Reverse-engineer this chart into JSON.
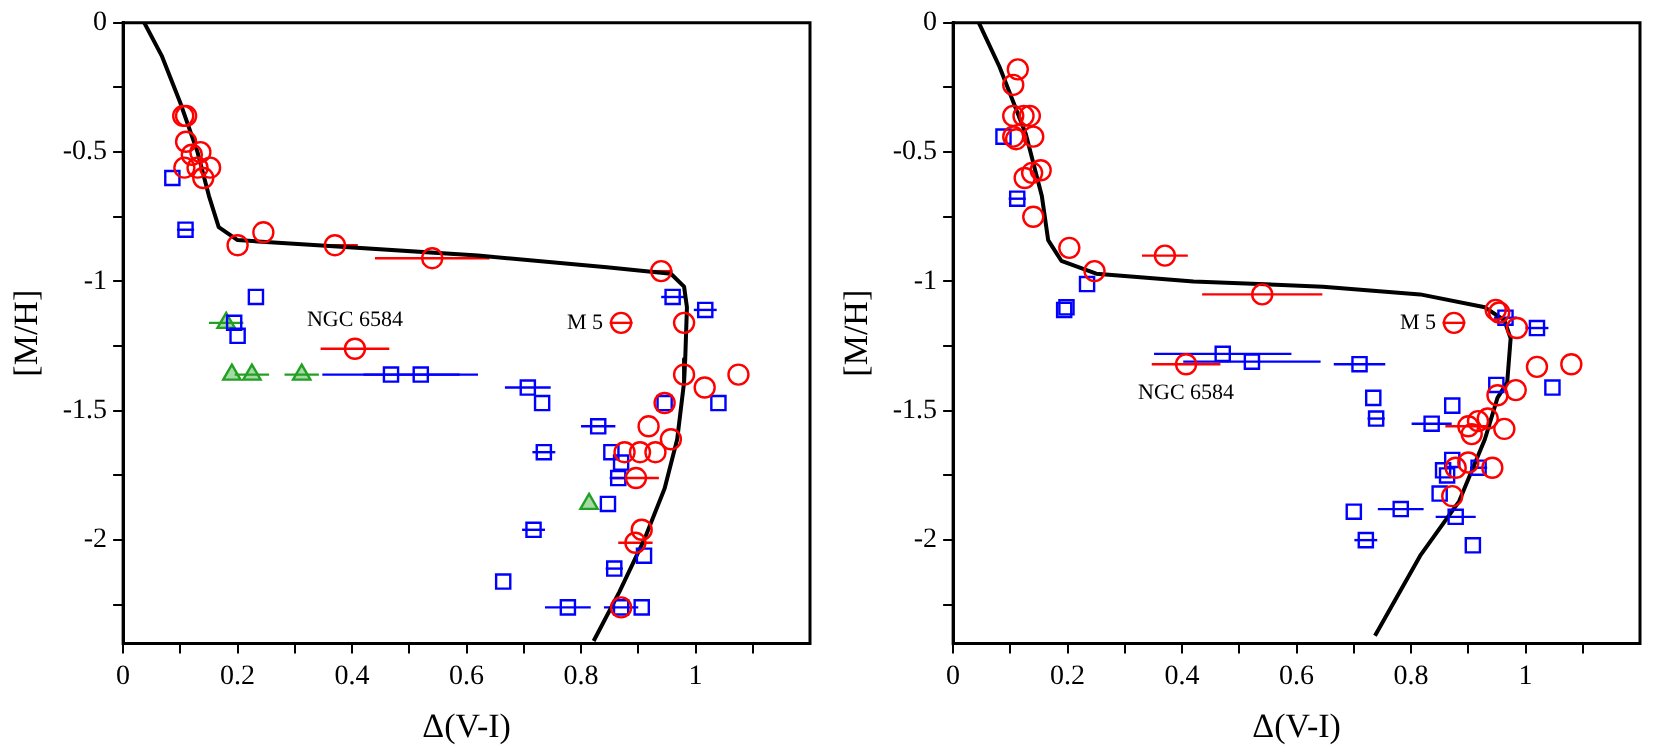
{
  "chart_data": [
    {
      "type": "scatter",
      "xlabel": "Δ(V-I)",
      "ylabel": "[M/H]",
      "xlim": [
        0,
        1.2
      ],
      "ylim": [
        -2.4,
        0
      ],
      "xticks": [
        0,
        {
          "value": 0.1,
          "label": null
        },
        0.2,
        {
          "value": 0.3,
          "label": null
        },
        0.4,
        {
          "value": 0.5,
          "label": null
        },
        0.6,
        {
          "value": 0.7,
          "label": null
        },
        0.8,
        {
          "value": 0.9,
          "label": null
        },
        1,
        {
          "value": 1.1,
          "label": null
        }
      ],
      "yticks": [
        0,
        {
          "value": -0.25,
          "label": null
        },
        -0.5,
        {
          "value": -0.75,
          "label": null
        },
        -1,
        {
          "value": -1.25,
          "label": null
        },
        -1.5,
        {
          "value": -1.75,
          "label": null
        },
        -2,
        {
          "value": -2.25,
          "label": null
        }
      ],
      "grid": false,
      "legend": false,
      "annotations": [
        {
          "text": "NGC 6584",
          "x": 0.405,
          "y": -1.26
        },
        {
          "text": "M 5",
          "x": 0.87,
          "y": -1.16
        }
      ],
      "series": [
        {
          "marker": "circle",
          "color": "#ff0000",
          "x": [
            0.105,
            0.11,
            0.11,
            0.12,
            0.135,
            0.107,
            0.13,
            0.152,
            0.14,
            0.2,
            0.245,
            0.37,
            0.54,
            0.94,
            0.87,
            0.98,
            0.405,
            0.98,
            1.075,
            1.016,
            0.946,
            0.918,
            0.957,
            0.876,
            0.903,
            0.93,
            0.896,
            0.906,
            0.895,
            0.87
          ],
          "values": [
            -0.36,
            -0.36,
            -0.46,
            -0.51,
            -0.5,
            -0.56,
            -0.56,
            -0.56,
            -0.6,
            -0.86,
            -0.81,
            -0.86,
            -0.91,
            -0.96,
            -1.16,
            -1.16,
            -1.26,
            -1.36,
            -1.36,
            -1.41,
            -1.47,
            -1.56,
            -1.61,
            -1.66,
            -1.66,
            -1.66,
            -1.76,
            -1.96,
            -2.01,
            -2.26
          ],
          "xerrors": [
            null,
            null,
            null,
            null,
            null,
            null,
            null,
            null,
            null,
            null,
            null,
            0.04,
            0.1,
            0.02,
            0.02,
            null,
            0.06,
            null,
            null,
            null,
            null,
            null,
            null,
            null,
            null,
            null,
            0.04,
            null,
            0.03,
            null
          ]
        },
        {
          "marker": "square",
          "color": "#0000ff",
          "x": [
            0.086,
            0.109,
            0.232,
            0.194,
            0.2,
            0.96,
            1.017,
            0.468,
            0.52,
            0.707,
            0.732,
            1.04,
            0.946,
            0.83,
            0.735,
            0.853,
            0.87,
            0.865,
            0.847,
            0.717,
            0.91,
            0.858,
            0.664,
            0.777,
            0.87,
            0.906
          ],
          "values": [
            -0.6,
            -0.8,
            -1.06,
            -1.16,
            -1.21,
            -1.06,
            -1.11,
            -1.36,
            -1.36,
            -1.41,
            -1.47,
            -1.47,
            -1.47,
            -1.56,
            -1.66,
            -1.66,
            -1.7,
            -1.76,
            -1.86,
            -1.96,
            -2.06,
            -2.11,
            -2.16,
            -2.26,
            -2.26,
            -2.26
          ],
          "xerrors": [
            null,
            0.015,
            null,
            null,
            null,
            0.02,
            0.02,
            0.12,
            0.1,
            0.04,
            null,
            null,
            null,
            0.03,
            0.02,
            null,
            null,
            0.015,
            null,
            0.02,
            null,
            0.015,
            null,
            0.04,
            0.03,
            null
          ]
        },
        {
          "marker": "triangle",
          "color": "#22a022",
          "x": [
            0.18,
            0.19,
            0.225,
            0.312,
            0.814
          ],
          "values": [
            -1.16,
            -1.36,
            -1.36,
            -1.36,
            -1.86
          ],
          "xerrors": [
            0.03,
            null,
            0.03,
            0.03,
            null
          ]
        },
        {
          "type": "line",
          "marker": "none",
          "color": "#000000",
          "x": [
            0.037,
            0.068,
            0.1,
            0.13,
            0.15,
            0.167,
            0.2,
            0.34,
            0.62,
            0.845,
            0.957,
            0.98,
            0.985,
            0.982,
            0.98,
            0.968,
            0.946,
            0.912,
            0.867,
            0.822
          ],
          "values": [
            0,
            -0.13,
            -0.31,
            -0.5,
            -0.67,
            -0.79,
            -0.84,
            -0.86,
            -0.9,
            -0.945,
            -0.97,
            -1.02,
            -1.1,
            -1.3,
            -1.39,
            -1.61,
            -1.8,
            -1.99,
            -2.2,
            -2.39
          ]
        }
      ]
    },
    {
      "type": "scatter",
      "xlabel": "Δ(V-I)",
      "ylabel": "[M/H]",
      "xlim": [
        0,
        1.2
      ],
      "ylim": [
        -2.4,
        0
      ],
      "xticks": [
        0,
        {
          "value": 0.1,
          "label": null
        },
        0.2,
        {
          "value": 0.3,
          "label": null
        },
        0.4,
        {
          "value": 0.5,
          "label": null
        },
        0.6,
        {
          "value": 0.7,
          "label": null
        },
        0.8,
        {
          "value": 0.9,
          "label": null
        },
        1,
        {
          "value": 1.1,
          "label": null
        }
      ],
      "yticks": [
        0,
        {
          "value": -0.25,
          "label": null
        },
        -0.5,
        {
          "value": -0.75,
          "label": null
        },
        -1,
        {
          "value": -1.25,
          "label": null
        },
        -1.5,
        {
          "value": -1.75,
          "label": null
        },
        -2,
        {
          "value": -2.25,
          "label": null
        }
      ],
      "grid": false,
      "legend": false,
      "annotations": [
        {
          "text": "M 5",
          "x": 0.875,
          "y": -1.16
        },
        {
          "text": "NGC 6584",
          "x": 0.407,
          "y": -1.32
        }
      ],
      "series": [
        {
          "marker": "circle",
          "color": "#ff0000",
          "x": [
            0.113,
            0.105,
            0.105,
            0.123,
            0.134,
            0.105,
            0.11,
            0.14,
            0.125,
            0.138,
            0.153,
            0.14,
            0.203,
            0.247,
            0.37,
            0.54,
            0.948,
            0.954,
            0.875,
            0.985,
            1.02,
            1.08,
            0.407,
            0.951,
            0.983,
            0.9,
            0.917,
            0.934,
            0.906,
            0.963,
            0.9,
            0.878,
            0.942,
            0.872
          ],
          "values": [
            -0.18,
            -0.24,
            -0.36,
            -0.36,
            -0.36,
            -0.44,
            -0.45,
            -0.44,
            -0.6,
            -0.58,
            -0.57,
            -0.75,
            -0.87,
            -0.96,
            -0.9,
            -1.05,
            -1.11,
            -1.12,
            -1.16,
            -1.18,
            -1.33,
            -1.32,
            -1.32,
            -1.44,
            -1.42,
            -1.56,
            -1.54,
            -1.53,
            -1.59,
            -1.57,
            -1.7,
            -1.72,
            -1.72,
            -1.83
          ],
          "xerrors": [
            null,
            null,
            null,
            null,
            null,
            null,
            null,
            null,
            null,
            null,
            null,
            null,
            null,
            null,
            0.04,
            0.105,
            null,
            null,
            0.02,
            null,
            null,
            null,
            0.06,
            null,
            null,
            0.04,
            null,
            null,
            null,
            null,
            null,
            null,
            null,
            null
          ]
        },
        {
          "marker": "square",
          "color": "#0000ff",
          "x": [
            0.088,
            0.112,
            0.234,
            0.198,
            0.194,
            0.965,
            1.02,
            0.471,
            0.522,
            0.71,
            0.949,
            1.047,
            0.734,
            0.739,
            0.872,
            0.836,
            0.872,
            0.856,
            0.863,
            0.918,
            0.85,
            0.782,
            0.7,
            0.878,
            0.721,
            0.908
          ],
          "values": [
            -0.44,
            -0.68,
            -1.01,
            -1.1,
            -1.11,
            -1.14,
            -1.18,
            -1.28,
            -1.31,
            -1.32,
            -1.4,
            -1.41,
            -1.45,
            -1.53,
            -1.48,
            -1.55,
            -1.69,
            -1.73,
            -1.75,
            -1.72,
            -1.82,
            -1.88,
            -1.89,
            -1.91,
            -2.0,
            -2.02
          ],
          "xerrors": [
            null,
            0.015,
            null,
            null,
            null,
            0.02,
            0.02,
            0.12,
            0.12,
            0.045,
            null,
            null,
            null,
            0.015,
            null,
            0.035,
            null,
            null,
            null,
            0.015,
            null,
            0.04,
            null,
            0.035,
            0.02,
            null
          ]
        },
        {
          "type": "line",
          "marker": "none",
          "color": "#000000",
          "x": [
            0.045,
            0.081,
            0.127,
            0.155,
            0.166,
            0.189,
            0.25,
            0.42,
            0.646,
            0.816,
            0.929,
            0.963,
            0.974,
            0.968,
            0.951,
            0.929,
            0.884,
            0.816,
            0.737
          ],
          "values": [
            0,
            -0.17,
            -0.43,
            -0.67,
            -0.84,
            -0.92,
            -0.97,
            -1.0,
            -1.02,
            -1.05,
            -1.1,
            -1.15,
            -1.22,
            -1.39,
            -1.45,
            -1.61,
            -1.85,
            -2.06,
            -2.37
          ]
        }
      ]
    }
  ]
}
